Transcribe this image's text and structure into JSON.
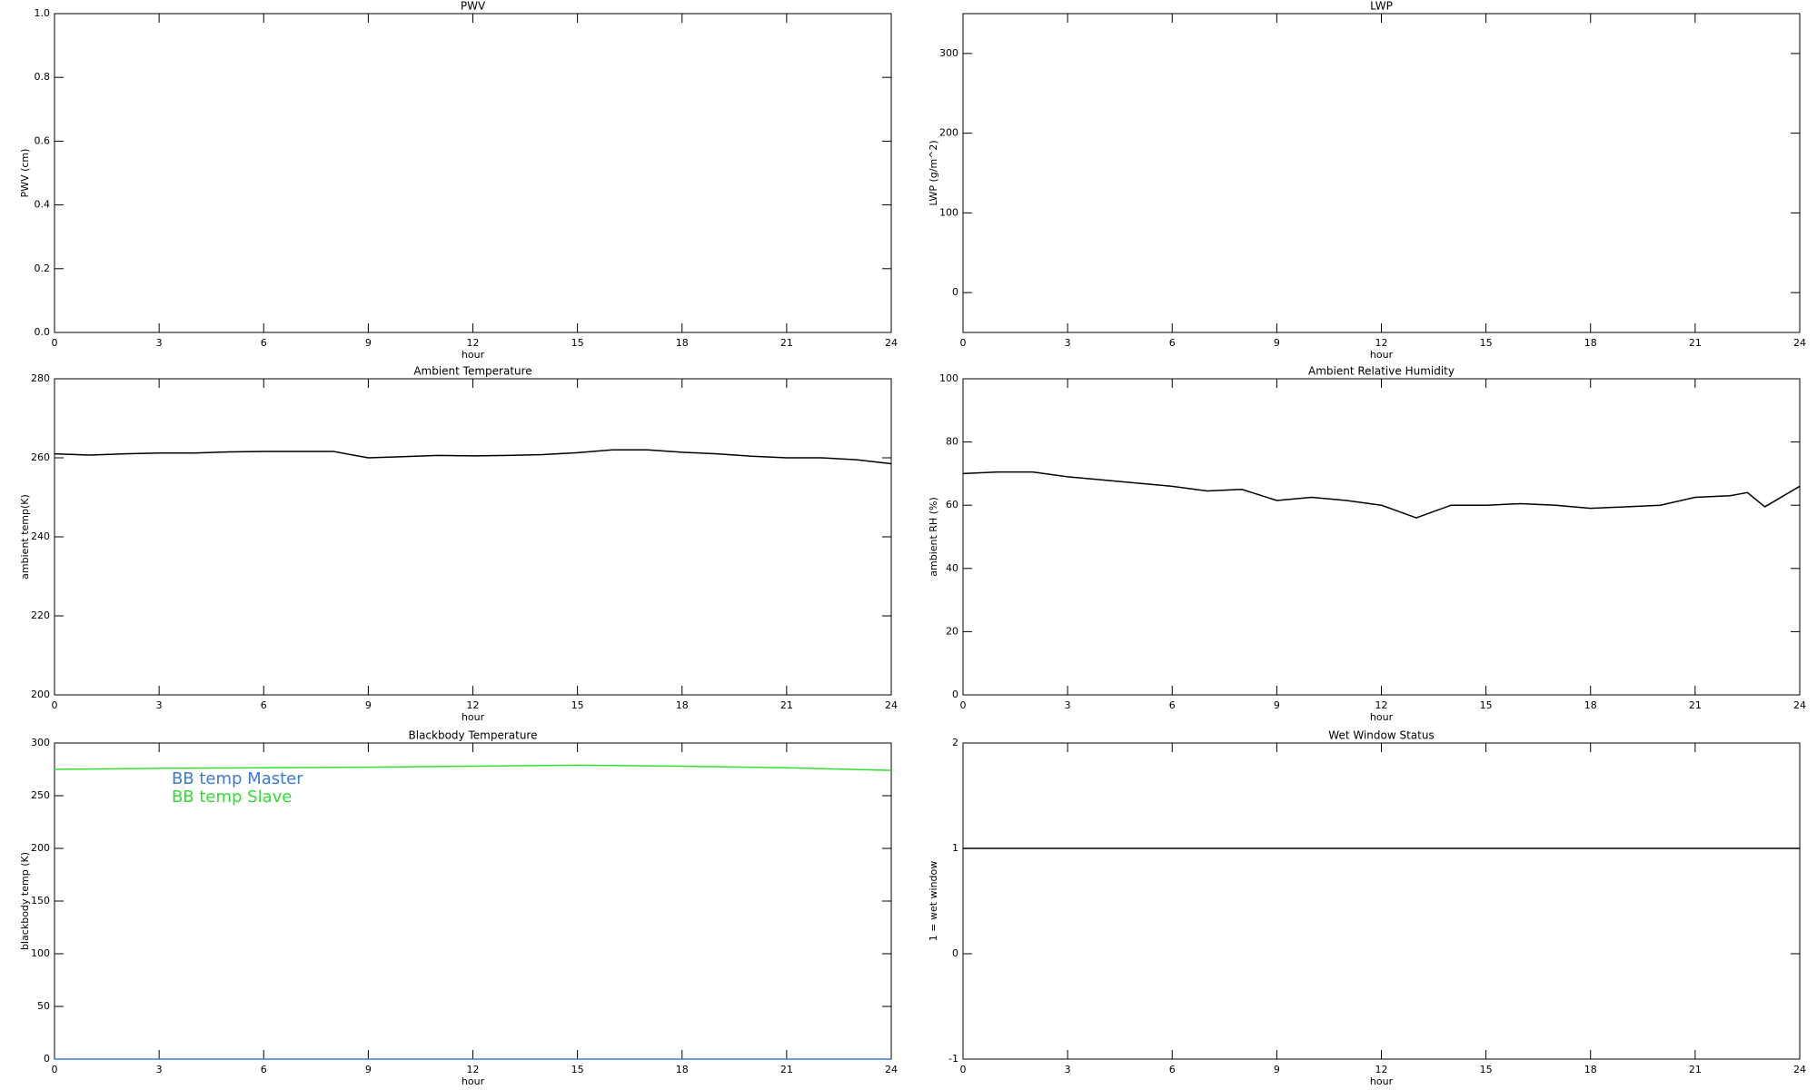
{
  "chart_data": [
    {
      "type": "line",
      "title": "PWV",
      "ylabel": "PWV (cm)",
      "xlabel": "hour",
      "xlim": [
        0,
        24
      ],
      "xticks": [
        0,
        3,
        6,
        9,
        12,
        15,
        18,
        21,
        24
      ],
      "ylim": [
        0,
        1
      ],
      "yticks": [
        {
          "value": 0,
          "label": "0.0"
        },
        0.2,
        0.4,
        0.6,
        0.8,
        {
          "value": 1,
          "label": "1.0"
        }
      ],
      "series": []
    },
    {
      "type": "line",
      "title": "LWP",
      "ylabel": "LWP (g/m^2)",
      "xlabel": "hour",
      "xlim": [
        0,
        24
      ],
      "xticks": [
        0,
        3,
        6,
        9,
        12,
        15,
        18,
        21,
        24
      ],
      "ylim": [
        -50,
        350
      ],
      "yticks": [
        0,
        100,
        200,
        300
      ],
      "series": []
    },
    {
      "type": "line",
      "title": "Ambient Temperature",
      "ylabel": "ambient temp(K)",
      "xlabel": "hour",
      "xlim": [
        0,
        24
      ],
      "xticks": [
        0,
        3,
        6,
        9,
        12,
        15,
        18,
        21,
        24
      ],
      "ylim": [
        200,
        280
      ],
      "yticks": [
        200,
        220,
        240,
        260,
        280
      ],
      "series": [
        {
          "color": "#000000",
          "x": [
            0,
            1,
            2,
            3,
            4,
            5,
            6,
            7,
            8,
            9,
            10,
            11,
            12,
            13,
            14,
            15,
            16,
            17,
            18,
            19,
            20,
            21,
            22,
            23,
            24
          ],
          "values": [
            261,
            260.7,
            261,
            261.2,
            261.2,
            261.5,
            261.6,
            261.6,
            261.6,
            260,
            260.3,
            260.6,
            260.5,
            260.6,
            260.8,
            261.3,
            262,
            262,
            261.4,
            261,
            260.4,
            260,
            260,
            259.5,
            258.5
          ]
        }
      ]
    },
    {
      "type": "line",
      "title": "Ambient Relative Humidity",
      "ylabel": "ambient RH (%)",
      "xlabel": "hour",
      "xlim": [
        0,
        24
      ],
      "xticks": [
        0,
        3,
        6,
        9,
        12,
        15,
        18,
        21,
        24
      ],
      "ylim": [
        0,
        100
      ],
      "yticks": [
        0,
        20,
        40,
        60,
        80,
        100
      ],
      "series": [
        {
          "color": "#000000",
          "x": [
            0,
            1,
            2,
            3,
            4,
            5,
            6,
            7,
            8,
            9,
            10,
            11,
            12,
            13,
            14,
            15,
            16,
            17,
            18,
            19,
            20,
            21,
            22,
            22.5,
            23,
            24
          ],
          "values": [
            70,
            70.5,
            70.5,
            69,
            68,
            67,
            66,
            64.5,
            65,
            61.5,
            62.5,
            61.5,
            60,
            56,
            60,
            60,
            60.5,
            60,
            59,
            59.5,
            60,
            62.5,
            63,
            64,
            59.5,
            66
          ]
        }
      ]
    },
    {
      "type": "line",
      "title": "Blackbody Temperature",
      "ylabel": "blackbody temp (K)",
      "xlabel": "hour",
      "xlim": [
        0,
        24
      ],
      "xticks": [
        0,
        3,
        6,
        9,
        12,
        15,
        18,
        21,
        24
      ],
      "ylim": [
        0,
        300
      ],
      "yticks": [
        0,
        50,
        100,
        150,
        200,
        250,
        300
      ],
      "legend": "upper left",
      "series": [
        {
          "name": "BB temp Master",
          "color": "#3a7bd5",
          "x": [
            0,
            24
          ],
          "values": [
            0,
            0
          ]
        },
        {
          "name": "BB temp Slave",
          "color": "#33dd33",
          "x": [
            0,
            3,
            6,
            9,
            12,
            15,
            18,
            21,
            24
          ],
          "values": [
            275,
            276,
            276.5,
            277,
            278,
            279,
            278,
            276.5,
            274
          ]
        }
      ]
    },
    {
      "type": "line",
      "title": "Wet Window Status",
      "ylabel": "1 = wet window",
      "xlabel": "hour",
      "xlim": [
        0,
        24
      ],
      "xticks": [
        0,
        3,
        6,
        9,
        12,
        15,
        18,
        21,
        24
      ],
      "ylim": [
        -1,
        2
      ],
      "yticks": [
        -1,
        0,
        1,
        2
      ],
      "series": [
        {
          "color": "#000000",
          "x": [
            0,
            24
          ],
          "values": [
            1,
            1
          ]
        }
      ]
    }
  ]
}
